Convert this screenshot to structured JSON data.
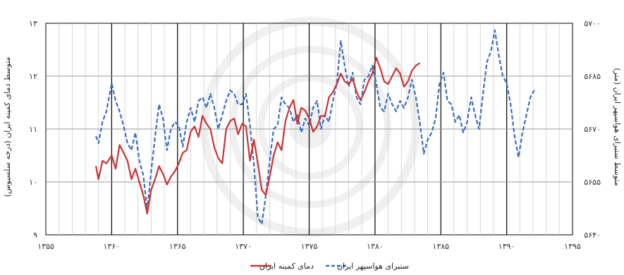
{
  "chart_data": {
    "type": "line",
    "x_axis": {
      "min": 1355,
      "max": 1395,
      "tick_labels": [
        "۱۳۵۵",
        "۱۳۶۰",
        "۱۳۶۵",
        "۱۳۷۰",
        "۱۳۷۵",
        "۱۳۸۰",
        "۱۳۸۵",
        "۱۳۹۰",
        "۱۳۹۵"
      ],
      "tick_values": [
        1355,
        1360,
        1365,
        1370,
        1375,
        1380,
        1385,
        1390,
        1395
      ]
    },
    "y_left": {
      "label": "متوسط دمای کمینه ایران (درجه سلسیوس)",
      "min": 9,
      "max": 13,
      "tick_labels": [
        "۹",
        "۱۰",
        "۱۱",
        "۱۲",
        "۱۳"
      ],
      "tick_values": [
        9,
        10,
        11,
        12,
        13
      ]
    },
    "y_right": {
      "label": "متوسط ستبرای هواسپهر ایران (متر)",
      "min": 5640,
      "max": 5700,
      "tick_labels": [
        "۵۶۴۰",
        "۵۶۵۵",
        "۵۶۷۰",
        "۵۶۸۵",
        "۵۷۰۰"
      ],
      "tick_values": [
        5640,
        5655,
        5670,
        5685,
        5700
      ]
    },
    "grid": "vertical-yearly-and-horizontal",
    "legend_placement": "bottom-center",
    "series": [
      {
        "name": "دمای کمینه ایران",
        "axis": "left",
        "color": "#cc3333",
        "style": "solid",
        "x": [
          1358.8,
          1359.0,
          1359.3,
          1359.6,
          1360.0,
          1360.3,
          1360.6,
          1360.9,
          1361.2,
          1361.5,
          1361.8,
          1362.1,
          1362.4,
          1362.7,
          1363.0,
          1363.3,
          1363.6,
          1363.9,
          1364.2,
          1364.5,
          1364.8,
          1365.1,
          1365.4,
          1365.7,
          1366.0,
          1366.3,
          1366.6,
          1366.9,
          1367.2,
          1367.5,
          1367.8,
          1368.1,
          1368.4,
          1368.7,
          1369.0,
          1369.3,
          1369.6,
          1369.9,
          1370.2,
          1370.5,
          1370.8,
          1371.1,
          1371.4,
          1371.7,
          1372.0,
          1372.3,
          1372.6,
          1372.9,
          1373.2,
          1373.5,
          1373.8,
          1374.1,
          1374.4,
          1374.7,
          1375.0,
          1375.3,
          1375.6,
          1375.9,
          1376.2,
          1376.5,
          1376.8,
          1377.1,
          1377.4,
          1377.7,
          1378.0,
          1378.3,
          1378.6,
          1378.9,
          1379.2,
          1379.5,
          1379.8,
          1380.1,
          1380.4,
          1380.7,
          1381.0,
          1381.3,
          1381.6,
          1381.9,
          1382.2,
          1382.5,
          1382.8,
          1383.1,
          1383.4
        ],
        "values": [
          10.3,
          10.05,
          10.4,
          10.35,
          10.5,
          10.25,
          10.7,
          10.55,
          10.4,
          10.05,
          10.25,
          10.0,
          9.75,
          9.4,
          9.85,
          10.05,
          10.3,
          10.15,
          9.95,
          10.1,
          10.2,
          10.35,
          10.55,
          10.6,
          10.95,
          11.05,
          10.85,
          11.25,
          11.1,
          11.0,
          10.65,
          10.45,
          10.35,
          11.0,
          11.15,
          11.2,
          10.9,
          11.1,
          11.05,
          10.4,
          10.8,
          10.35,
          9.85,
          9.75,
          10.1,
          10.5,
          10.75,
          10.6,
          11.15,
          11.4,
          11.55,
          11.1,
          11.4,
          11.35,
          11.2,
          10.95,
          11.05,
          11.25,
          11.25,
          11.6,
          11.7,
          11.85,
          12.05,
          11.9,
          11.85,
          11.95,
          11.7,
          11.55,
          11.7,
          11.9,
          12.05,
          12.35,
          12.15,
          11.9,
          11.85,
          12.0,
          12.15,
          12.05,
          11.8,
          11.9,
          12.1,
          12.2,
          12.25
        ]
      },
      {
        "name": "ستبرای هواسپهر ایران",
        "axis": "right",
        "color": "#3b6fbf",
        "style": "dashed",
        "x": [
          1358.8,
          1359.0,
          1359.3,
          1359.6,
          1360.0,
          1360.3,
          1360.6,
          1360.9,
          1361.2,
          1361.5,
          1361.8,
          1362.1,
          1362.4,
          1362.7,
          1363.0,
          1363.3,
          1363.6,
          1363.9,
          1364.2,
          1364.5,
          1364.8,
          1365.1,
          1365.4,
          1365.7,
          1366.0,
          1366.3,
          1366.6,
          1366.9,
          1367.2,
          1367.5,
          1367.8,
          1368.1,
          1368.4,
          1368.7,
          1369.0,
          1369.3,
          1369.6,
          1369.9,
          1370.2,
          1370.5,
          1370.8,
          1371.1,
          1371.4,
          1371.7,
          1372.0,
          1372.3,
          1372.6,
          1372.9,
          1373.2,
          1373.5,
          1373.8,
          1374.1,
          1374.4,
          1374.7,
          1375.0,
          1375.3,
          1375.6,
          1375.9,
          1376.2,
          1376.5,
          1376.8,
          1377.1,
          1377.4,
          1377.7,
          1378.0,
          1378.3,
          1378.6,
          1378.9,
          1379.2,
          1379.5,
          1379.8,
          1380.1,
          1380.4,
          1380.7,
          1381.0,
          1381.3,
          1381.6,
          1381.9,
          1382.2,
          1382.5,
          1382.8,
          1383.1,
          1383.4,
          1383.7,
          1384.0,
          1384.3,
          1384.6,
          1384.9,
          1385.2,
          1385.5,
          1385.8,
          1386.1,
          1386.4,
          1386.7,
          1387.0,
          1387.3,
          1387.6,
          1387.9,
          1388.2,
          1388.5,
          1388.8,
          1389.1,
          1389.4,
          1389.7,
          1390.0,
          1390.3,
          1390.6,
          1390.9,
          1391.2,
          1391.5,
          1391.8,
          1392.1
        ],
        "values": [
          5668,
          5666,
          5672,
          5675,
          5683,
          5678,
          5675,
          5671,
          5666,
          5664,
          5669,
          5661,
          5657,
          5647,
          5658,
          5668,
          5677,
          5673,
          5664,
          5670,
          5672,
          5671,
          5665,
          5672,
          5676,
          5672,
          5678,
          5679,
          5676,
          5680,
          5676,
          5670,
          5674,
          5678,
          5681,
          5680,
          5677,
          5677,
          5680,
          5671,
          5660,
          5645,
          5643,
          5651,
          5661,
          5670,
          5671,
          5679,
          5677,
          5676,
          5672,
          5674,
          5669,
          5673,
          5671,
          5676,
          5678,
          5670,
          5674,
          5672,
          5678,
          5683,
          5695,
          5688,
          5682,
          5686,
          5679,
          5677,
          5684,
          5685,
          5688,
          5683,
          5676,
          5675,
          5680,
          5677,
          5675,
          5678,
          5676,
          5679,
          5684,
          5679,
          5672,
          5663,
          5667,
          5669,
          5673,
          5683,
          5686,
          5678,
          5677,
          5672,
          5674,
          5669,
          5672,
          5679,
          5674,
          5670,
          5680,
          5689,
          5692,
          5698,
          5691,
          5685,
          5683,
          5677,
          5668,
          5662,
          5669,
          5674,
          5679,
          5681
        ]
      }
    ]
  },
  "legend": {
    "items": [
      {
        "label": "دمای کمینه ایران",
        "color": "#cc3333",
        "style": "solid"
      },
      {
        "label": "ستبرای هواسپهر ایران",
        "color": "#3b6fbf",
        "style": "dashed"
      }
    ]
  }
}
